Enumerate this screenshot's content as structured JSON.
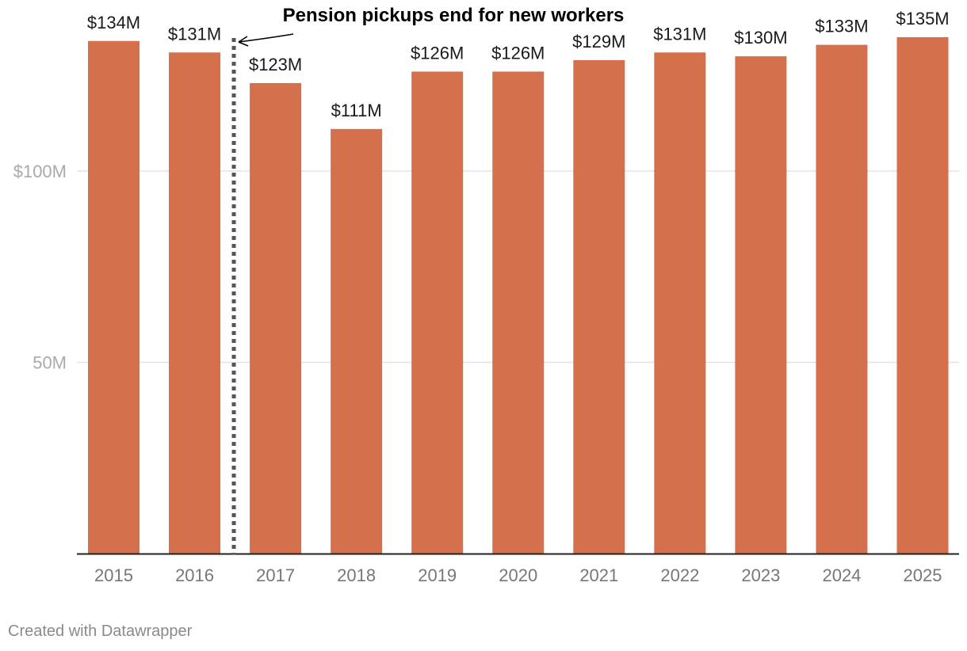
{
  "chart_data": {
    "type": "bar",
    "categories": [
      "2015",
      "2016",
      "2017",
      "2018",
      "2019",
      "2020",
      "2021",
      "2022",
      "2023",
      "2024",
      "2025"
    ],
    "values": [
      134,
      131,
      123,
      111,
      126,
      126,
      129,
      131,
      130,
      133,
      135
    ],
    "value_labels": [
      "$134M",
      "$131M",
      "$123M",
      "$111M",
      "$126M",
      "$126M",
      "$129M",
      "$131M",
      "$130M",
      "$133M",
      "$135M"
    ],
    "unit": "$M",
    "ylim": [
      0,
      135
    ],
    "yticks": [
      {
        "value": 100,
        "label": "$100M"
      },
      {
        "value": 50,
        "label": "50M"
      }
    ],
    "grid": true,
    "bar_color": "#d4704b",
    "annotation": {
      "text": "Pension pickups end for new workers",
      "between": [
        "2016",
        "2017"
      ]
    }
  },
  "footer": {
    "credit": "Created with Datawrapper"
  }
}
